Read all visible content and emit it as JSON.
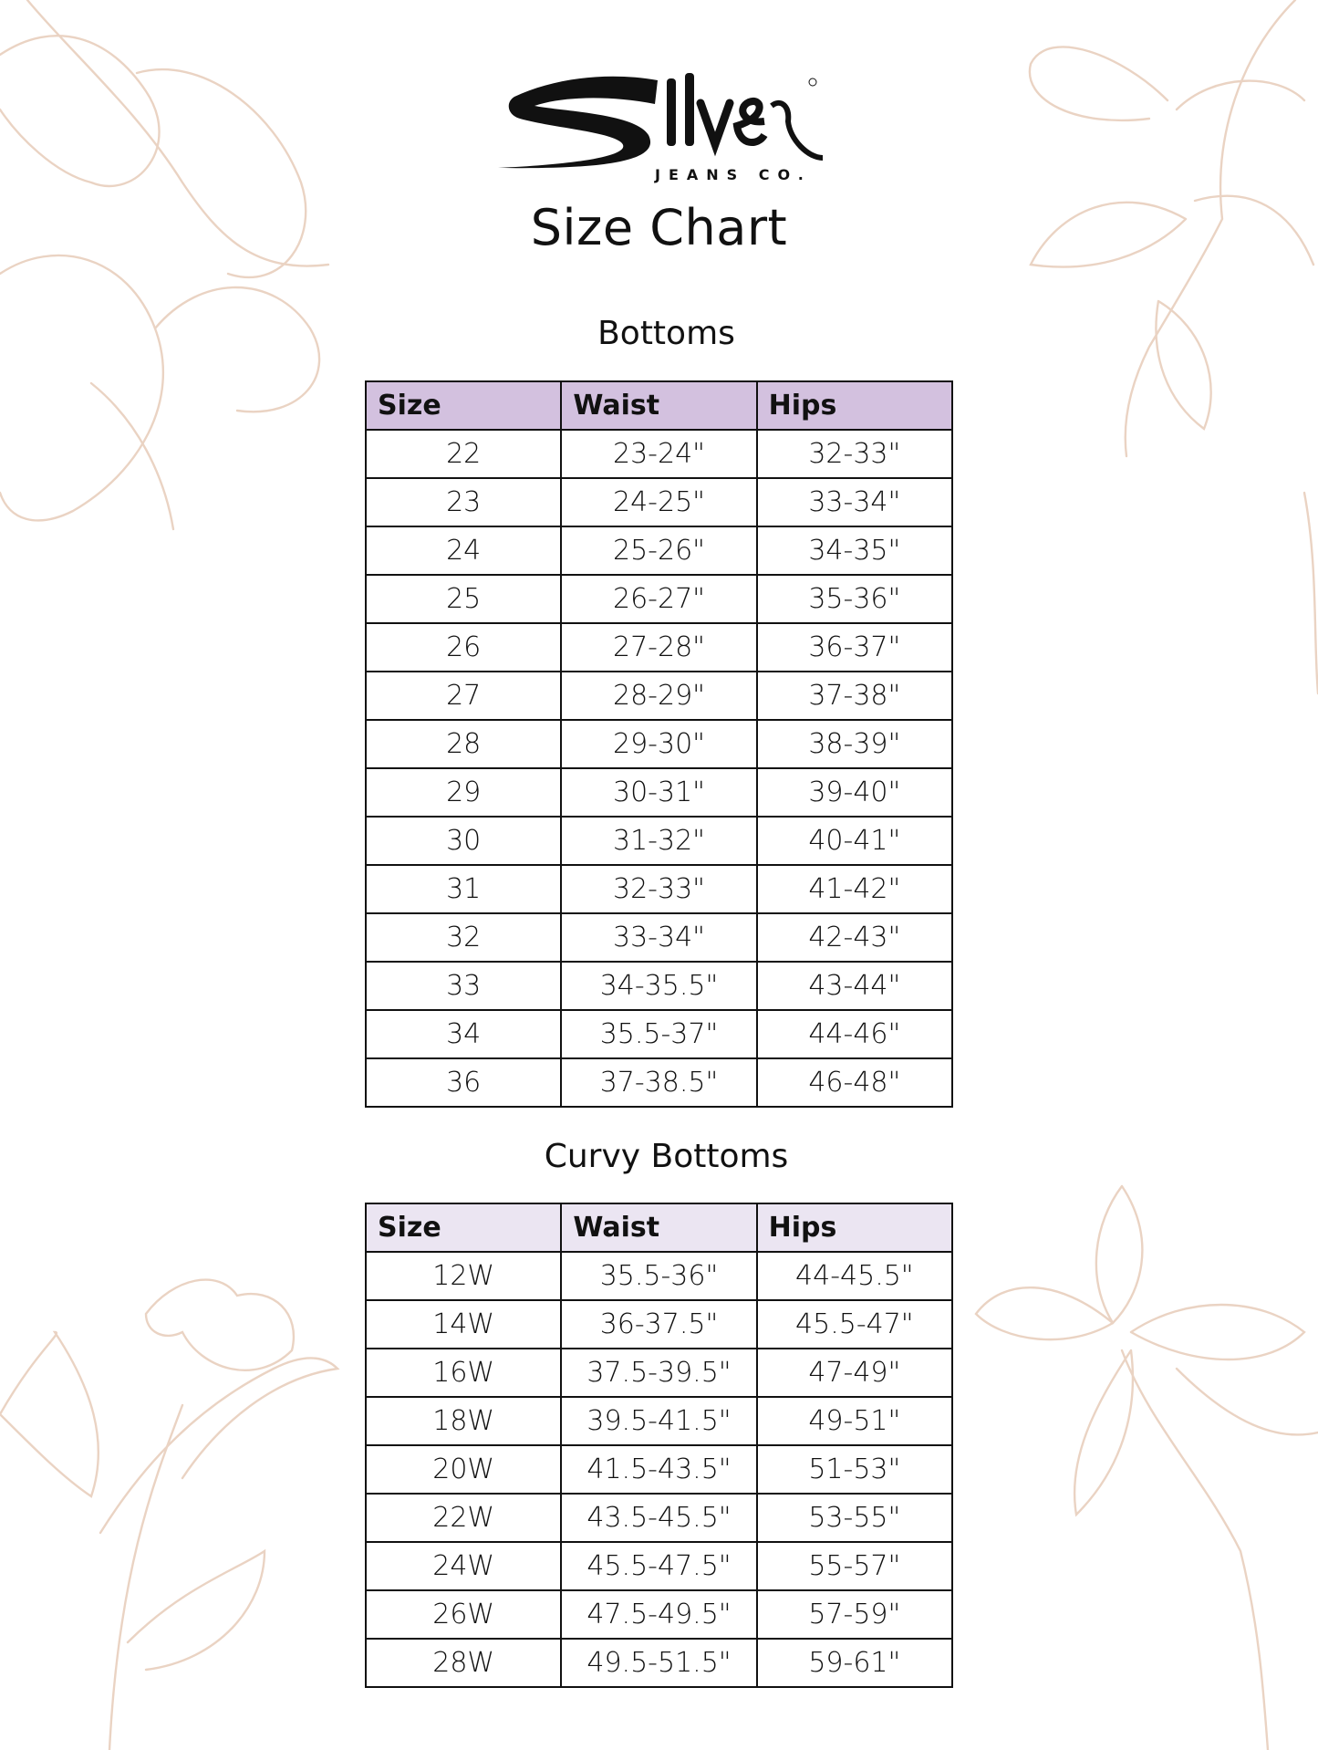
{
  "brand": {
    "logo_text": "Silver",
    "logo_subtext": "JEANS CO.",
    "registered_mark": "®"
  },
  "title": "Size Chart",
  "colors": {
    "bottoms_header": "#d3c1df",
    "curvy_header": "#ebe5f2",
    "floral": "#ead3c3"
  },
  "bottoms": {
    "heading": "Bottoms",
    "columns": [
      "Size",
      "Waist",
      "Hips"
    ],
    "rows": [
      [
        "22",
        "23-24\"",
        "32-33\""
      ],
      [
        "23",
        "24-25\"",
        "33-34\""
      ],
      [
        "24",
        "25-26\"",
        "34-35\""
      ],
      [
        "25",
        "26-27\"",
        "35-36\""
      ],
      [
        "26",
        "27-28\"",
        "36-37\""
      ],
      [
        "27",
        "28-29\"",
        "37-38\""
      ],
      [
        "28",
        "29-30\"",
        "38-39\""
      ],
      [
        "29",
        "30-31\"",
        "39-40\""
      ],
      [
        "30",
        "31-32\"",
        "40-41\""
      ],
      [
        "31",
        "32-33\"",
        "41-42\""
      ],
      [
        "32",
        "33-34\"",
        "42-43\""
      ],
      [
        "33",
        "34-35.5\"",
        "43-44\""
      ],
      [
        "34",
        "35.5-37\"",
        "44-46\""
      ],
      [
        "36",
        "37-38.5\"",
        "46-48\""
      ]
    ]
  },
  "curvy_bottoms": {
    "heading": "Curvy Bottoms",
    "columns": [
      "Size",
      "Waist",
      "Hips"
    ],
    "rows": [
      [
        "12W",
        "35.5-36\"",
        "44-45.5\""
      ],
      [
        "14W",
        "36-37.5\"",
        "45.5-47\""
      ],
      [
        "16W",
        "37.5-39.5\"",
        "47-49\""
      ],
      [
        "18W",
        "39.5-41.5\"",
        "49-51\""
      ],
      [
        "20W",
        "41.5-43.5\"",
        "51-53\""
      ],
      [
        "22W",
        "43.5-45.5\"",
        "53-55\""
      ],
      [
        "24W",
        "45.5-47.5\"",
        "55-57\""
      ],
      [
        "26W",
        "47.5-49.5\"",
        "57-59\""
      ],
      [
        "28W",
        "49.5-51.5\"",
        "59-61\""
      ]
    ]
  }
}
